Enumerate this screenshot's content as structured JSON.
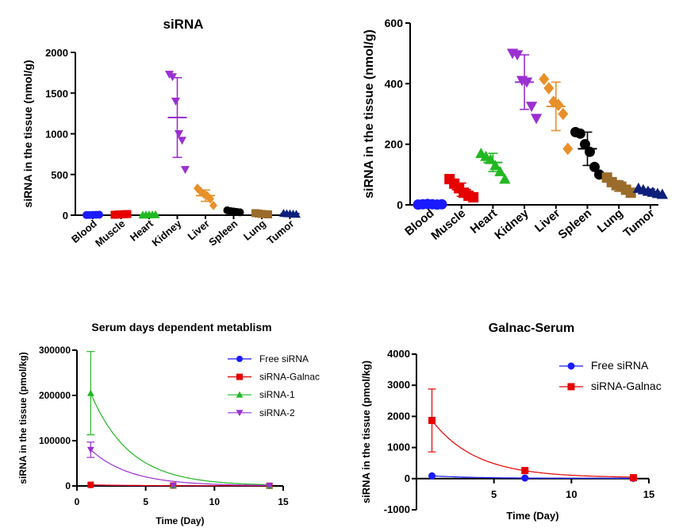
{
  "chart_data": [
    {
      "type": "scatter",
      "title": "siRNA",
      "ylabel": "siRNA in the tissue  (nmol/g)",
      "xlabel": "",
      "categories": [
        "Blood",
        "Muscle",
        "Heart",
        "Kidney",
        "Liver",
        "Spleen",
        "Lung",
        "Tumor"
      ],
      "ylim": [
        0,
        2000
      ],
      "yticks": [
        "0",
        "500",
        "1000",
        "1500",
        "2000"
      ],
      "marker_colors": [
        "#1a1aff",
        "#e60000",
        "#22b822",
        "#9b30d0",
        "#e8902a",
        "#000000",
        "#9a6b2a",
        "#0d1f7a"
      ],
      "markers": [
        "circle",
        "square",
        "triangle-up",
        "triangle-down",
        "diamond",
        "circle",
        "square",
        "triangle-up"
      ],
      "series": [
        {
          "category": "Blood",
          "values": [
            2,
            3,
            4,
            5,
            6
          ],
          "mean": 4,
          "sd": 2
        },
        {
          "category": "Muscle",
          "values": [
            5,
            8,
            10,
            12,
            14
          ],
          "mean": 10,
          "sd": 3
        },
        {
          "category": "Heart",
          "values": [
            3,
            4,
            5,
            6,
            7
          ],
          "mean": 5,
          "sd": 2
        },
        {
          "category": "Kidney",
          "values": [
            1730,
            1700,
            1400,
            1000,
            920,
            560
          ],
          "mean": 1200,
          "sd": 490
        },
        {
          "category": "Liver",
          "values": [
            330,
            290,
            260,
            240,
            200,
            120
          ],
          "mean": 240,
          "sd": 70
        },
        {
          "category": "Spleen",
          "values": [
            60,
            50,
            45,
            40,
            35
          ],
          "mean": 45,
          "sd": 10
        },
        {
          "category": "Lung",
          "values": [
            25,
            20,
            15,
            12,
            10
          ],
          "mean": 17,
          "sd": 6
        },
        {
          "category": "Tumor",
          "values": [
            25,
            20,
            18,
            15,
            12
          ],
          "mean": 18,
          "sd": 6
        }
      ]
    },
    {
      "type": "scatter",
      "title": "",
      "ylabel": "siRNA in the tissue  (nmol/g)",
      "xlabel": "",
      "categories": [
        "Blood",
        "Muscle",
        "Heart",
        "Kidney",
        "Liver",
        "Spleen",
        "Lung",
        "Tumor"
      ],
      "ylim": [
        0,
        600
      ],
      "yticks": [
        "0",
        "200",
        "400",
        "600"
      ],
      "marker_colors": [
        "#1a1aff",
        "#e60000",
        "#22b822",
        "#9b30d0",
        "#e8902a",
        "#000000",
        "#9a6b2a",
        "#0d1f7a"
      ],
      "markers": [
        "circle",
        "square",
        "triangle-up",
        "triangle-down",
        "diamond",
        "circle",
        "square",
        "triangle-up"
      ],
      "series": [
        {
          "category": "Blood",
          "values": [
            1,
            2,
            3,
            2,
            1,
            2
          ],
          "mean": 2,
          "sd": 1
        },
        {
          "category": "Muscle",
          "values": [
            85,
            70,
            55,
            40,
            30,
            25
          ],
          "mean": 50,
          "sd": 22
        },
        {
          "category": "Heart",
          "values": [
            170,
            160,
            150,
            130,
            110,
            85
          ],
          "mean": 140,
          "sd": 30
        },
        {
          "category": "Kidney",
          "values": [
            500,
            495,
            410,
            405,
            325,
            285
          ],
          "mean": 405,
          "sd": 90
        },
        {
          "category": "Liver",
          "values": [
            415,
            385,
            340,
            330,
            300,
            185
          ],
          "mean": 325,
          "sd": 80
        },
        {
          "category": "Spleen",
          "values": [
            240,
            235,
            200,
            175,
            125,
            100
          ],
          "mean": 185,
          "sd": 55
        },
        {
          "category": "Lung",
          "values": [
            90,
            75,
            65,
            60,
            50,
            40
          ],
          "mean": 62,
          "sd": 17
        },
        {
          "category": "Tumor",
          "values": [
            55,
            50,
            45,
            42,
            38,
            35
          ],
          "mean": 44,
          "sd": 8
        }
      ]
    },
    {
      "type": "line",
      "title": "Serum days dependent metablism",
      "xlabel": "Time (Day)",
      "ylabel": "siRNA in the tissue  (pmol/kg)",
      "xlim": [
        0,
        15
      ],
      "ylim": [
        0,
        300000
      ],
      "xticks": [
        "0",
        "5",
        "10",
        "15"
      ],
      "yticks": [
        "0",
        "100000",
        "200000",
        "300000"
      ],
      "legend_position": "right",
      "series": [
        {
          "name": "Free siRNA",
          "color": "#1a1aff",
          "marker": "circle",
          "x": [
            1,
            7,
            14
          ],
          "y": [
            2000,
            800,
            300
          ],
          "yerr": [
            0,
            0,
            0
          ]
        },
        {
          "name": "siRNA-Galnac",
          "color": "#e60000",
          "marker": "square",
          "x": [
            1,
            7,
            14
          ],
          "y": [
            2500,
            1000,
            400
          ],
          "yerr": [
            0,
            0,
            0
          ]
        },
        {
          "name": "siRNA-1",
          "color": "#22b822",
          "marker": "triangle-up",
          "x": [
            1,
            7,
            14
          ],
          "y": [
            205000,
            1000,
            500
          ],
          "yerr": [
            92000,
            0,
            0
          ]
        },
        {
          "name": "siRNA-2",
          "color": "#9b30d0",
          "marker": "triangle-down",
          "x": [
            1,
            7,
            14
          ],
          "y": [
            80000,
            800,
            400
          ],
          "yerr": [
            17000,
            0,
            0
          ]
        }
      ]
    },
    {
      "type": "line",
      "title": "Galnac-Serum",
      "xlabel": "Time (Day)",
      "ylabel": "siRNA in the tissue  (pmol/kg)",
      "xlim": [
        0,
        15
      ],
      "ylim": [
        -1000,
        4000
      ],
      "xticks": [
        "5",
        "10",
        "15"
      ],
      "yticks": [
        "-1000",
        "0",
        "1000",
        "2000",
        "3000",
        "4000"
      ],
      "legend_position": "top-right",
      "series": [
        {
          "name": "Free siRNA",
          "color": "#1a1aff",
          "marker": "circle",
          "x": [
            1,
            7,
            14
          ],
          "y": [
            90,
            20,
            10
          ],
          "yerr": [
            0,
            0,
            0
          ]
        },
        {
          "name": "siRNA-Galnac",
          "color": "#e60000",
          "marker": "square",
          "x": [
            1,
            7,
            14
          ],
          "y": [
            1870,
            260,
            30
          ],
          "yerr": [
            1010,
            0,
            0
          ]
        }
      ]
    }
  ]
}
